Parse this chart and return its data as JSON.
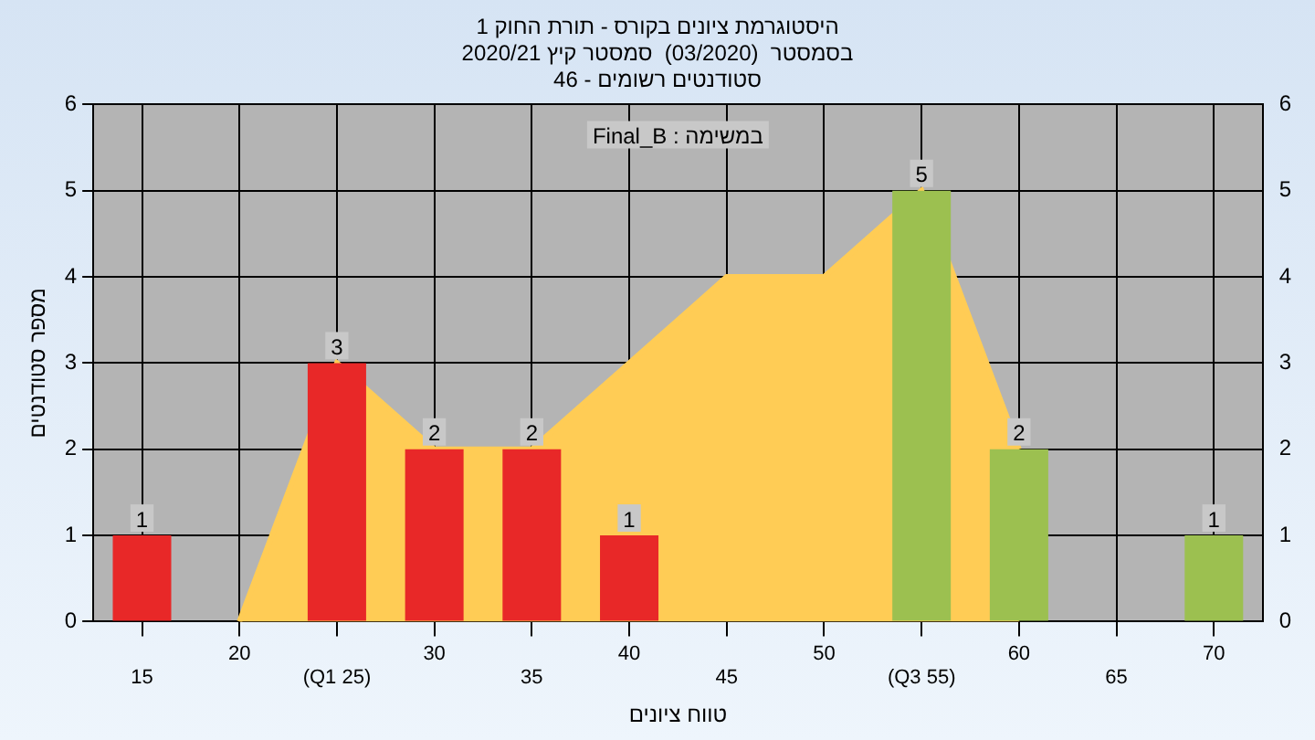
{
  "chart_data": {
    "type": "bar",
    "title": "היסטוגרמת ציונים בקורס - תורת החוק 1",
    "subtitle": "בסמסטר  (03/2020)  סמסטר קיץ 2020/21\nסטודנטים רשומים - 46",
    "xlabel": "טווח ציונים",
    "ylabel": "מספר סטודנטים",
    "annotations": [
      "במשימה : Final_B"
    ],
    "categories": [
      "15",
      "20",
      "(Q1 25)",
      "30",
      "35",
      "40",
      "45",
      "50",
      "(Q3 55)",
      "60",
      "65",
      "70"
    ],
    "series": [
      {
        "type": "area",
        "color": "#ffcc55",
        "values": [
          null,
          0,
          3,
          2,
          2,
          3,
          4,
          4,
          5,
          2,
          null,
          null
        ]
      },
      {
        "colors": [
          "#e82828",
          "#e82828",
          "#e82828",
          "#e82828",
          "#e82828",
          "#e82828",
          "#9cc050",
          "#9cc050",
          "#9cc050",
          "#9cc050",
          "#9cc050",
          "#9cc050"
        ],
        "values": [
          1,
          0,
          3,
          2,
          2,
          1,
          0,
          0,
          5,
          2,
          0,
          1
        ],
        "value_labels": [
          "1",
          null,
          "3",
          "2",
          "2",
          "1",
          null,
          null,
          "5",
          "2",
          null,
          "1"
        ]
      }
    ],
    "ylim": [
      0,
      6
    ],
    "yticks": [
      0,
      1,
      2,
      3,
      4,
      5,
      6
    ],
    "y2lim": [
      0,
      6
    ],
    "y2ticks": [
      0,
      1,
      2,
      3,
      4,
      5,
      6
    ],
    "grid": true,
    "legend": false
  }
}
